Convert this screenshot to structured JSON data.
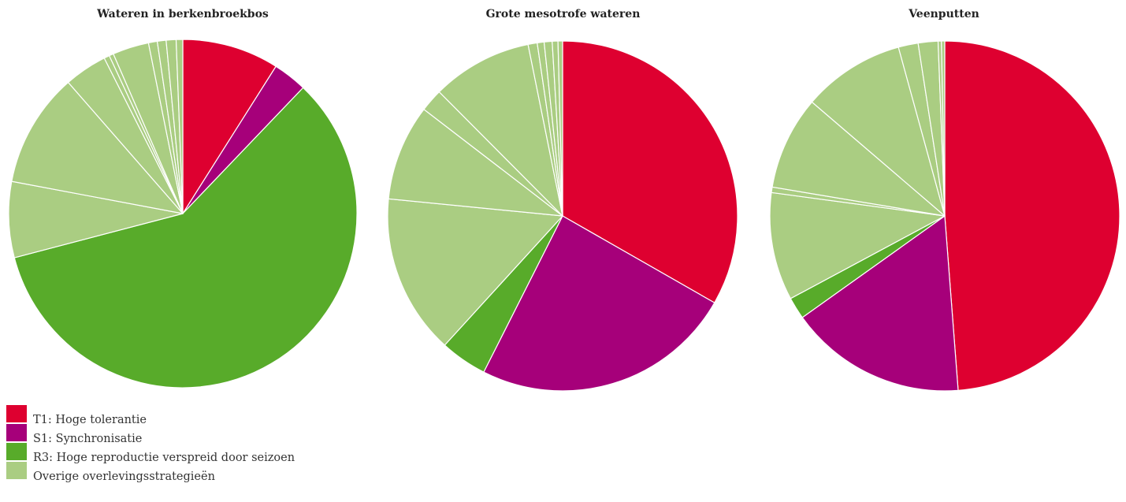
{
  "colors": {
    "T1": "#de0030",
    "S1": "#a6007a",
    "R3": "#58ab2a",
    "overig": "#aacd82",
    "stroke": "#ffffff"
  },
  "legend": [
    {
      "key": "T1",
      "label": "T1: Hoge tolerantie"
    },
    {
      "key": "S1",
      "label": "S1: Synchronisatie"
    },
    {
      "key": "R3",
      "label": "R3: Hoge reproductie verspreid door seizoen"
    },
    {
      "key": "overig",
      "label": "Overige overlevingsstrategieën"
    }
  ],
  "chart_data": [
    {
      "type": "pie",
      "title": "Wateren in berkenbroekbos",
      "slices": [
        {
          "category": "T1",
          "value": 8.8
        },
        {
          "category": "S1",
          "value": 3.1
        },
        {
          "category": "R3",
          "value": 57.6
        },
        {
          "category": "overig",
          "value": 6.9
        },
        {
          "category": "overig",
          "value": 10.4
        },
        {
          "category": "overig",
          "value": 3.9
        },
        {
          "category": "overig",
          "value": 0.5
        },
        {
          "category": "overig",
          "value": 0.4
        },
        {
          "category": "overig",
          "value": 3.3
        },
        {
          "category": "overig",
          "value": 0.8
        },
        {
          "category": "overig",
          "value": 0.8
        },
        {
          "category": "overig",
          "value": 0.9
        },
        {
          "category": "overig",
          "value": 0.6
        }
      ]
    },
    {
      "type": "pie",
      "title": "Grote mesotrofe wateren",
      "slices": [
        {
          "category": "T1",
          "value": 31.5
        },
        {
          "category": "S1",
          "value": 22.9
        },
        {
          "category": "R3",
          "value": 4.1
        },
        {
          "category": "overig",
          "value": 14.0
        },
        {
          "category": "overig",
          "value": 8.4
        },
        {
          "category": "overig",
          "value": 2.0
        },
        {
          "category": "overig",
          "value": 8.8
        },
        {
          "category": "overig",
          "value": 0.8
        },
        {
          "category": "overig",
          "value": 0.6
        },
        {
          "category": "overig",
          "value": 0.7
        },
        {
          "category": "overig",
          "value": 0.5
        },
        {
          "category": "overig",
          "value": 0.4
        }
      ]
    },
    {
      "type": "pie",
      "title": "Veenputten",
      "slices": [
        {
          "category": "T1",
          "value": 48.0
        },
        {
          "category": "S1",
          "value": 16.1
        },
        {
          "category": "R3",
          "value": 2.0
        },
        {
          "category": "overig",
          "value": 9.8
        },
        {
          "category": "overig",
          "value": 0.5
        },
        {
          "category": "overig",
          "value": 8.5
        },
        {
          "category": "overig",
          "value": 9.3
        },
        {
          "category": "overig",
          "value": 1.8
        },
        {
          "category": "overig",
          "value": 1.8
        },
        {
          "category": "overig",
          "value": 0.3
        },
        {
          "category": "overig",
          "value": 0.3
        }
      ]
    }
  ]
}
